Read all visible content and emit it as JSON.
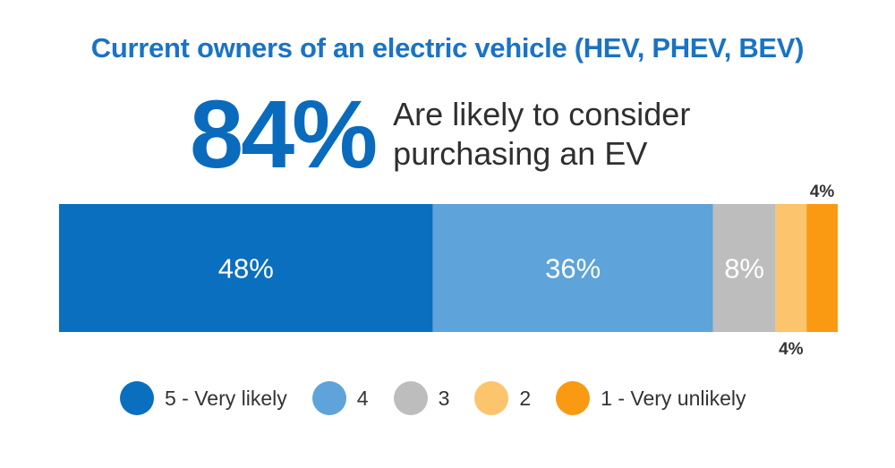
{
  "title": "Current owners of an electric vehicle (HEV, PHEV, BEV)",
  "headline": {
    "value": "84%",
    "text": "Are likely to consider purchasing an EV"
  },
  "chart_data": {
    "type": "bar",
    "orientation": "horizontal-stacked",
    "categories": [
      "5 - Very likely",
      "4",
      "3",
      "2",
      "1 - Very unlikely"
    ],
    "values": [
      48,
      36,
      8,
      4,
      4
    ],
    "labels": [
      "48%",
      "36%",
      "8%",
      "4%",
      "4%"
    ],
    "label_positions": [
      "inside",
      "inside",
      "inside",
      "below",
      "above"
    ],
    "colors": [
      "#0a6fbf",
      "#5ea3d9",
      "#bdbdbd",
      "#fcc46c",
      "#f99a12"
    ],
    "legend_placement": "bottom",
    "grid": false
  },
  "legend": [
    {
      "label": "5 - Very likely",
      "color": "#0a6fbf"
    },
    {
      "label": "4",
      "color": "#5ea3d9"
    },
    {
      "label": "3",
      "color": "#bdbdbd"
    },
    {
      "label": "2",
      "color": "#fcc46c"
    },
    {
      "label": "1 - Very unlikely",
      "color": "#f99a12"
    }
  ]
}
